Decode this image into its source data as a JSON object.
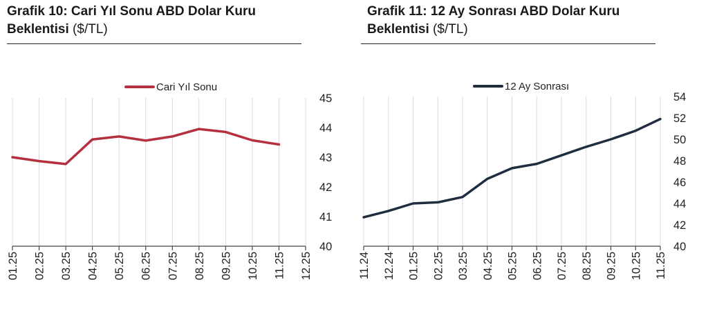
{
  "charts": [
    {
      "title_bold": "Grafik 10: Cari Yıl Sonu ABD Dolar Kuru Beklentisi",
      "title_unit": "($/TL)",
      "line_color": "#b5303f"
    },
    {
      "title_bold": "Grafik 11: 12 Ay Sonrası ABD Dolar Kuru Beklentisi",
      "title_unit": "($/TL)",
      "line_color": "#1f2d3f"
    }
  ],
  "chart_data": [
    {
      "type": "line",
      "categories": [
        "01.25",
        "02.25",
        "03.25",
        "04.25",
        "05.25",
        "06.25",
        "07.25",
        "08.25",
        "09.25",
        "10.25",
        "11.25",
        "12.25"
      ],
      "series": [
        {
          "name": "Cari Yıl Sonu",
          "values": [
            43.0,
            42.87,
            42.77,
            43.6,
            43.7,
            43.56,
            43.7,
            43.95,
            43.85,
            43.57,
            43.43,
            null
          ]
        }
      ],
      "ylim": [
        40,
        45
      ],
      "yticks": [
        40,
        41,
        42,
        43,
        44,
        45
      ],
      "y_axis_side": "right",
      "grid": "vertical",
      "legend": "top-center"
    },
    {
      "type": "line",
      "categories": [
        "11.24",
        "12.24",
        "01.25",
        "02.25",
        "03.25",
        "04.25",
        "05.25",
        "06.25",
        "07.25",
        "08.25",
        "09.25",
        "10.25",
        "11.25"
      ],
      "series": [
        {
          "name": "12 Ay Sonrası",
          "values": [
            42.7,
            43.3,
            44.0,
            44.1,
            44.6,
            46.3,
            47.3,
            47.7,
            48.5,
            49.3,
            50.0,
            50.8,
            51.9
          ]
        }
      ],
      "ylim": [
        40,
        54
      ],
      "yticks": [
        40,
        42,
        44,
        46,
        48,
        50,
        52,
        54
      ],
      "y_axis_side": "right",
      "grid": "vertical",
      "legend": "top-center"
    }
  ]
}
